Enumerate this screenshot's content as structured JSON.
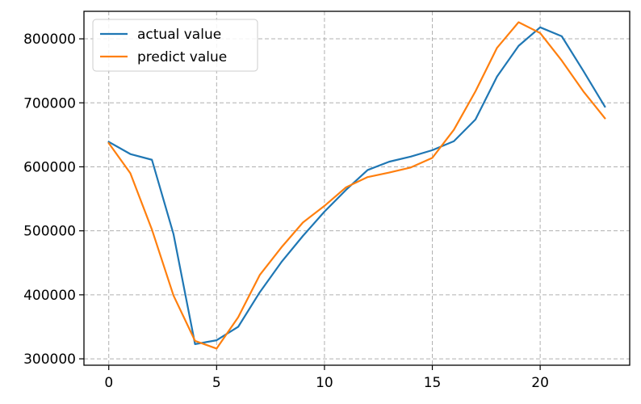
{
  "chart_data": {
    "type": "line",
    "title": "",
    "xlabel": "",
    "ylabel": "",
    "xlim": [
      -1.15,
      24.15
    ],
    "ylim": [
      290000,
      843000
    ],
    "grid": true,
    "legend_position": "top-left",
    "x_ticks": [
      0,
      5,
      10,
      15,
      20
    ],
    "x_tick_labels": [
      "0",
      "5",
      "10",
      "15",
      "20"
    ],
    "y_ticks": [
      300000,
      400000,
      500000,
      600000,
      700000,
      800000
    ],
    "y_tick_labels": [
      "300000",
      "400000",
      "500000",
      "600000",
      "700000",
      "800000"
    ],
    "x": [
      0,
      1,
      2,
      3,
      4,
      5,
      6,
      7,
      8,
      9,
      10,
      11,
      12,
      13,
      14,
      15,
      16,
      17,
      18,
      19,
      20,
      21,
      22,
      23
    ],
    "series": [
      {
        "name": "actual value",
        "color": "#1f77b4",
        "values": [
          639000,
          620000,
          611000,
          495000,
          323000,
          329000,
          350000,
          404000,
          451000,
          492000,
          530000,
          564000,
          595000,
          608000,
          616000,
          626000,
          640000,
          674000,
          741000,
          789000,
          818000,
          804000,
          750000,
          694000
        ]
      },
      {
        "name": "predict value",
        "color": "#ff7f0e",
        "values": [
          637000,
          590000,
          502000,
          399000,
          328000,
          316000,
          365000,
          431000,
          474000,
          513000,
          539000,
          568000,
          584000,
          591000,
          599000,
          614000,
          658000,
          718000,
          786000,
          826000,
          809000,
          766000,
          718000,
          676000
        ]
      }
    ]
  }
}
